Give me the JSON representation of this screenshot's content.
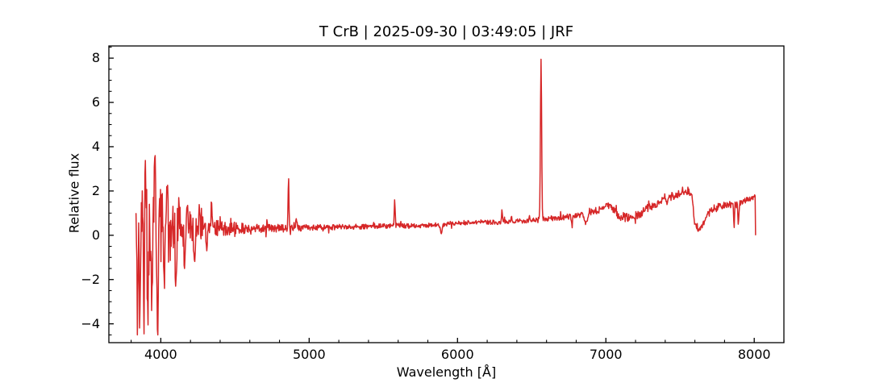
{
  "figure": {
    "background": "#ffffff"
  },
  "chart_data": {
    "type": "line",
    "title": "T CrB | 2025-09-30 | 03:49:05 | JRF",
    "xlabel": "Wavelength [Å]",
    "ylabel": "Relative flux",
    "line_color": "#d62728",
    "axis_color": "#000000",
    "grid": false,
    "legend": "none",
    "xlim": [
      3650,
      8200
    ],
    "ylim": [
      -4.85,
      8.55
    ],
    "xticks": [
      4000,
      5000,
      6000,
      7000,
      8000
    ],
    "xtick_labels": [
      "4000",
      "5000",
      "6000",
      "7000",
      "8000"
    ],
    "yticks": [
      -4,
      -2,
      0,
      2,
      4,
      6,
      8
    ],
    "ytick_labels": [
      "−4",
      "−2",
      "0",
      "2",
      "4",
      "6",
      "8"
    ],
    "minor_xtick_step": 200,
    "minor_ytick_step": 0.5,
    "tick_style": {
      "direction": "in",
      "sides": [
        "bottom",
        "left"
      ],
      "major_len": 6,
      "minor_len": 3.5
    },
    "series": [
      {
        "name": "spectrum",
        "color": "#d62728",
        "x_start": 3833,
        "x_end": 8010,
        "end_flux": 0.02,
        "continuum_points": [
          [
            3833,
            0.12
          ],
          [
            3900,
            0.22
          ],
          [
            4000,
            0.28
          ],
          [
            4150,
            0.3
          ],
          [
            4300,
            0.3
          ],
          [
            4500,
            0.3
          ],
          [
            4700,
            0.31
          ],
          [
            4900,
            0.33
          ],
          [
            5100,
            0.35
          ],
          [
            5300,
            0.38
          ],
          [
            5500,
            0.42
          ],
          [
            5700,
            0.44
          ],
          [
            5850,
            0.45
          ],
          [
            5950,
            0.5
          ],
          [
            6050,
            0.57
          ],
          [
            6150,
            0.6
          ],
          [
            6250,
            0.58
          ],
          [
            6350,
            0.62
          ],
          [
            6450,
            0.66
          ],
          [
            6550,
            0.72
          ],
          [
            6650,
            0.78
          ],
          [
            6800,
            0.88
          ],
          [
            6950,
            1.12
          ],
          [
            7020,
            1.38
          ],
          [
            7060,
            1.05
          ],
          [
            7110,
            0.82
          ],
          [
            7160,
            0.78
          ],
          [
            7220,
            0.92
          ],
          [
            7300,
            1.28
          ],
          [
            7400,
            1.62
          ],
          [
            7480,
            1.86
          ],
          [
            7555,
            1.98
          ],
          [
            7580,
            1.85
          ],
          [
            7598,
            0.5
          ],
          [
            7625,
            0.22
          ],
          [
            7655,
            0.5
          ],
          [
            7690,
            0.95
          ],
          [
            7730,
            1.2
          ],
          [
            7790,
            1.35
          ],
          [
            7850,
            1.42
          ],
          [
            7880,
            1.32
          ],
          [
            7910,
            1.45
          ],
          [
            7950,
            1.58
          ],
          [
            7990,
            1.68
          ],
          [
            8006,
            1.78
          ],
          [
            8010,
            0.02
          ]
        ],
        "noise_amplitude_points": [
          [
            3833,
            1.6
          ],
          [
            3855,
            2.2
          ],
          [
            3880,
            2.6
          ],
          [
            3910,
            2.6
          ],
          [
            3940,
            2.5
          ],
          [
            3970,
            2.4
          ],
          [
            4000,
            2.0
          ],
          [
            4050,
            1.6
          ],
          [
            4100,
            1.3
          ],
          [
            4150,
            1.0
          ],
          [
            4200,
            0.8
          ],
          [
            4270,
            0.6
          ],
          [
            4350,
            0.42
          ],
          [
            4450,
            0.3
          ],
          [
            4600,
            0.22
          ],
          [
            4800,
            0.17
          ],
          [
            5000,
            0.14
          ],
          [
            5300,
            0.12
          ],
          [
            5600,
            0.11
          ],
          [
            5900,
            0.11
          ],
          [
            6200,
            0.1
          ],
          [
            6500,
            0.11
          ],
          [
            6800,
            0.14
          ],
          [
            7000,
            0.16
          ],
          [
            7090,
            0.24
          ],
          [
            7250,
            0.2
          ],
          [
            7400,
            0.2
          ],
          [
            7550,
            0.15
          ],
          [
            7620,
            0.1
          ],
          [
            7700,
            0.18
          ],
          [
            7850,
            0.2
          ],
          [
            7950,
            0.15
          ],
          [
            8008,
            0.12
          ]
        ],
        "emission_peaks": [
          {
            "wavelength": 4861,
            "peak_flux": 2.55,
            "sigma": 3
          },
          {
            "wavelength": 5577,
            "peak_flux": 1.6,
            "sigma": 3
          },
          {
            "wavelength": 6300,
            "peak_flux": 1.15,
            "sigma": 3
          },
          {
            "wavelength": 6364,
            "peak_flux": 0.85,
            "sigma": 3
          },
          {
            "wavelength": 6563,
            "peak_flux": 7.95,
            "sigma": 4
          }
        ],
        "up_spikes": [
          [
            3897,
            3.45
          ],
          [
            3962,
            3.6
          ],
          [
            4040,
            2.2
          ],
          [
            4120,
            1.7
          ],
          [
            4180,
            1.35
          ],
          [
            4262,
            1.05
          ],
          [
            4343,
            1.45
          ],
          [
            4913,
            0.75
          ]
        ],
        "down_spikes": [
          [
            3845,
            -2.6
          ],
          [
            3859,
            -3.2
          ],
          [
            3885,
            -2.9
          ],
          [
            3913,
            -4.05
          ],
          [
            3938,
            -3.4
          ],
          [
            3978,
            -4.25
          ],
          [
            4025,
            -2.4
          ],
          [
            4101,
            -2.3
          ],
          [
            4160,
            -1.5
          ],
          [
            4226,
            -1.1
          ],
          [
            4310,
            -0.7
          ]
        ],
        "absorption_dips": [
          {
            "wavelength": 5890,
            "min_flux": 0.07,
            "sigma": 5
          },
          {
            "wavelength": 6770,
            "min_flux": 0.55,
            "sigma": 5
          },
          {
            "wavelength": 6867,
            "min_flux": 0.6,
            "sigma": 9
          },
          {
            "wavelength": 7864,
            "min_flux": 0.35,
            "sigma": 3
          },
          {
            "wavelength": 7893,
            "min_flux": 0.5,
            "sigma": 3
          }
        ]
      }
    ]
  }
}
